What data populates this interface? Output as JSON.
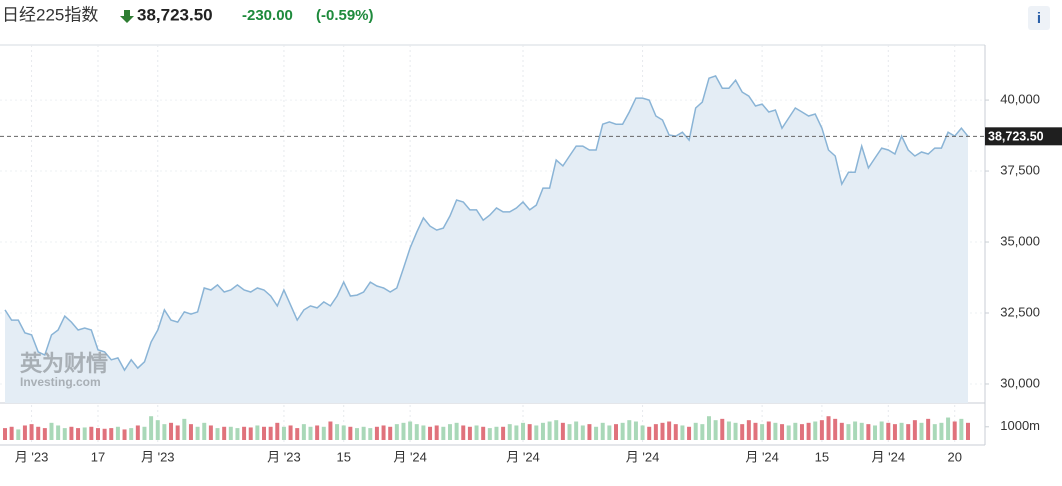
{
  "header": {
    "title": "日经225指数",
    "price": "38,723.50",
    "change": "-230.00",
    "change_pct": "(-0.59%)",
    "info": "i"
  },
  "watermark": {
    "brand": "英为财情",
    "site": "Investing.com"
  },
  "chart_data": {
    "type": "area",
    "categories": [
      null,
      null,
      null,
      null,
      "月 '23",
      null,
      null,
      null,
      null,
      null,
      null,
      null,
      null,
      null,
      "17",
      null,
      null,
      null,
      null,
      null,
      null,
      null,
      null,
      "月 '23",
      null,
      null,
      null,
      null,
      null,
      null,
      null,
      null,
      null,
      null,
      null,
      null,
      null,
      null,
      null,
      null,
      null,
      null,
      "月 '23",
      null,
      null,
      null,
      null,
      null,
      null,
      null,
      null,
      "15",
      null,
      null,
      null,
      null,
      null,
      null,
      null,
      null,
      null,
      "月 '24",
      null,
      null,
      null,
      null,
      null,
      null,
      null,
      null,
      null,
      null,
      null,
      null,
      null,
      null,
      null,
      null,
      "月 '24",
      null,
      null,
      null,
      null,
      null,
      null,
      null,
      null,
      null,
      null,
      null,
      null,
      null,
      null,
      null,
      null,
      null,
      "月 '24",
      null,
      null,
      null,
      null,
      null,
      null,
      null,
      null,
      null,
      null,
      null,
      null,
      null,
      null,
      null,
      null,
      null,
      "月 '24",
      null,
      null,
      null,
      null,
      null,
      null,
      null,
      null,
      "15",
      null,
      null,
      null,
      null,
      null,
      null,
      null,
      null,
      null,
      "月 '24",
      null,
      null,
      null,
      null,
      null,
      null,
      null,
      null,
      null,
      "20",
      null,
      null
    ],
    "series": [
      {
        "name": "Price",
        "color": "#8ab4d6",
        "fill": "#e4edf5",
        "values": [
          32610,
          32250,
          32250,
          31800,
          31730,
          31130,
          31020,
          31730,
          31900,
          32390,
          32180,
          31900,
          31970,
          31900,
          31200,
          31130,
          30850,
          30920,
          30490,
          30850,
          30560,
          30780,
          31480,
          31900,
          32610,
          32250,
          32180,
          32540,
          32460,
          32540,
          33380,
          33310,
          33490,
          33240,
          33310,
          33490,
          33310,
          33240,
          33380,
          33310,
          33100,
          32750,
          33310,
          32780,
          32250,
          32610,
          32750,
          32680,
          32890,
          32750,
          33100,
          33590,
          33100,
          33130,
          33240,
          33590,
          33450,
          33380,
          33240,
          33380,
          34080,
          34790,
          35350,
          35850,
          35560,
          35420,
          35490,
          35920,
          36480,
          36410,
          36130,
          36130,
          35770,
          35950,
          36200,
          36060,
          36060,
          36200,
          36410,
          36130,
          36300,
          36900,
          36900,
          37890,
          37680,
          38030,
          38380,
          38380,
          38240,
          38240,
          39150,
          39230,
          39150,
          39150,
          39580,
          40070,
          40070,
          40000,
          39440,
          39300,
          38770,
          38730,
          38870,
          38590,
          39720,
          39930,
          40770,
          40850,
          40420,
          40420,
          40700,
          40280,
          40140,
          39790,
          39860,
          39580,
          39650,
          39010,
          39370,
          39720,
          39580,
          39440,
          39510,
          39010,
          38240,
          38030,
          37040,
          37460,
          37460,
          38380,
          37610,
          37960,
          38310,
          38240,
          38100,
          38730,
          38240,
          38030,
          38170,
          38100,
          38310,
          38310,
          38870,
          38730,
          39010,
          38723.5
        ]
      },
      {
        "name": "Volume",
        "axis": "y2",
        "up_color": "#a9d8b8",
        "down_color": "#e0727c",
        "values": [
          900,
          1000,
          800,
          1100,
          1200,
          1000,
          900,
          1300,
          1100,
          900,
          1000,
          900,
          950,
          1000,
          900,
          850,
          900,
          1000,
          800,
          900,
          1100,
          1000,
          1800,
          1500,
          1200,
          1300,
          1100,
          1600,
          1200,
          1000,
          1300,
          1100,
          900,
          1000,
          1000,
          900,
          1000,
          950,
          1100,
          1000,
          1000,
          1300,
          1000,
          1100,
          900,
          1200,
          1000,
          1100,
          1000,
          1400,
          1200,
          1100,
          1000,
          900,
          1000,
          900,
          1000,
          1100,
          1000,
          1200,
          1300,
          1400,
          1200,
          1100,
          1000,
          1100,
          1000,
          1200,
          1300,
          1100,
          1000,
          1100,
          1000,
          900,
          1000,
          1000,
          1200,
          1100,
          1300,
          1200,
          1100,
          1300,
          1400,
          1500,
          1300,
          1200,
          1400,
          1100,
          1200,
          1000,
          1300,
          1100,
          1200,
          1300,
          1500,
          1400,
          1100,
          1000,
          1200,
          1300,
          1400,
          1200,
          1100,
          1000,
          1300,
          1200,
          1800,
          1500,
          1600,
          1400,
          1300,
          1200,
          1500,
          1300,
          1200,
          1400,
          1300,
          1200,
          1100,
          1300,
          1200,
          1300,
          1400,
          1500,
          1800,
          1600,
          1300,
          1200,
          1400,
          1300,
          1200,
          1100,
          1400,
          1300,
          1200,
          1300,
          1200,
          1500,
          1300,
          1600,
          1200,
          1300,
          1700,
          1400,
          1600,
          1300
        ]
      }
    ],
    "ylim": [
      29330,
      41940
    ],
    "yticks": [
      {
        "value": 30000,
        "label": "30,000"
      },
      {
        "value": 32500,
        "label": "32,500"
      },
      {
        "value": 35000,
        "label": "35,000"
      },
      {
        "value": 37500,
        "label": "37,500"
      },
      {
        "value": 40000,
        "label": "40,000"
      }
    ],
    "y2lim": [
      0,
      2800
    ],
    "y2ticks": [
      {
        "value": 1000,
        "label": "1000m"
      }
    ],
    "grid": true
  }
}
